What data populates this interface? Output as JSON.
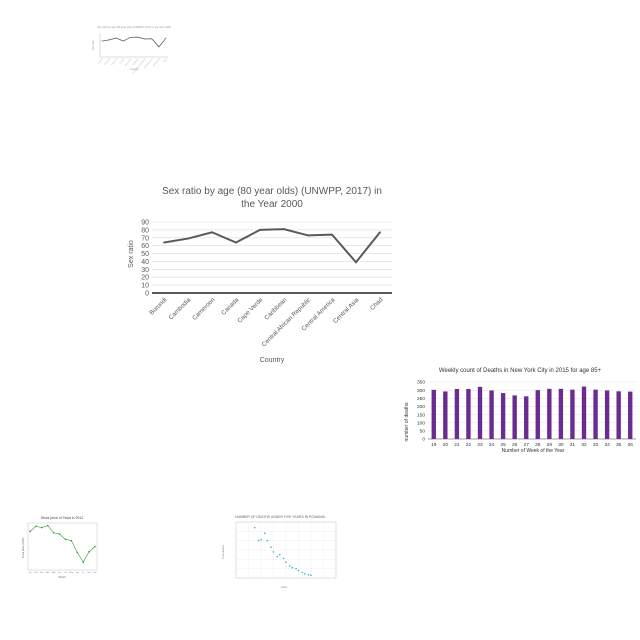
{
  "chart_data": [
    {
      "id": "thumb-line",
      "type": "line",
      "title": "Sex ratio by age (80 year olds) (UNWPP, 2017) in the Year 2000",
      "xlabel": "Country",
      "ylabel": "Sex ratio",
      "categories": [
        "Burundi",
        "Cambodia",
        "Cameroon",
        "Canada",
        "Cape Verde",
        "Caribbean",
        "Central African Republic",
        "Central America",
        "Central Asia",
        "Chad"
      ],
      "values": [
        64,
        69,
        77,
        64,
        80,
        81,
        73,
        74,
        39,
        77
      ],
      "ylim": [
        0,
        90
      ],
      "color": "#555555"
    },
    {
      "id": "main-line",
      "type": "line",
      "title": "Sex ratio by age (80 year olds) (UNWPP, 2017) in the Year 2000",
      "title_lines": [
        "Sex ratio by age (80 year olds) (UNWPP, 2017) in",
        "the Year 2000"
      ],
      "xlabel": "Country",
      "ylabel": "Sex ratio",
      "categories": [
        "Burundi",
        "Cambodia",
        "Cameroon",
        "Canada",
        "Cape Verde",
        "Caribbean",
        "Central African Republic",
        "Central America",
        "Central Asia",
        "Chad"
      ],
      "values": [
        64,
        69,
        77,
        64,
        80,
        81,
        73,
        74,
        39,
        77
      ],
      "ylim": [
        0,
        90
      ],
      "yticks": [
        0,
        10,
        20,
        30,
        40,
        50,
        60,
        70,
        80,
        90
      ],
      "grid": true,
      "color": "#595959"
    },
    {
      "id": "bar-deaths",
      "type": "bar",
      "title": "Weekly count of Deaths in New York City in 2015 for age 85+",
      "xlabel": "Number of Week of the Year",
      "ylabel": "number of deaths",
      "categories": [
        "19",
        "20",
        "21",
        "22",
        "23",
        "24",
        "25",
        "26",
        "27",
        "28",
        "29",
        "30",
        "31",
        "32",
        "33",
        "34",
        "35",
        "36"
      ],
      "values": [
        302,
        292,
        307,
        307,
        320,
        298,
        282,
        268,
        262,
        300,
        308,
        308,
        303,
        322,
        303,
        298,
        293,
        291
      ],
      "ylim": [
        0,
        350
      ],
      "yticks": [
        0,
        50,
        100,
        150,
        200,
        250,
        300,
        350
      ],
      "grid": true,
      "color": "#6a2c91"
    },
    {
      "id": "stock-line",
      "type": "line",
      "title": "Stock price of Tesla in 2012",
      "xlabel": "Month",
      "ylabel": "Stock price (USD)",
      "categories": [
        "Jan",
        "Feb",
        "Mar",
        "Apr",
        "May",
        "Jun",
        "Jul",
        "Aug",
        "Sep",
        "Oct",
        "Nov",
        "Dec"
      ],
      "values": [
        29.5,
        33.5,
        32.5,
        34,
        28.5,
        27.5,
        23.5,
        22.5,
        13.5,
        6,
        14,
        18
      ],
      "ylim": [
        0,
        36
      ],
      "color": "#2e9e2e"
    },
    {
      "id": "scatter-deaths",
      "type": "scatter",
      "title": "NUMBER OF DEATHS UNDER FIVE YEARS IN ROMANIA",
      "xlabel": "Years",
      "ylabel": "Total deaths",
      "x": [
        1965,
        1968,
        1970,
        1973,
        1975,
        1978,
        1980,
        1983,
        1985,
        1988,
        1990,
        1993,
        1995,
        1998,
        2000,
        2003,
        2005,
        2008,
        2010
      ],
      "y": [
        54000,
        40000,
        41000,
        48000,
        40000,
        33000,
        28000,
        23000,
        25000,
        21000,
        17000,
        13000,
        11000,
        10000,
        8000,
        6000,
        4500,
        3500,
        3000
      ],
      "xlim": [
        1950,
        2030
      ],
      "ylim": [
        0,
        60000
      ],
      "grid": true,
      "color": "#29b6d6"
    }
  ]
}
